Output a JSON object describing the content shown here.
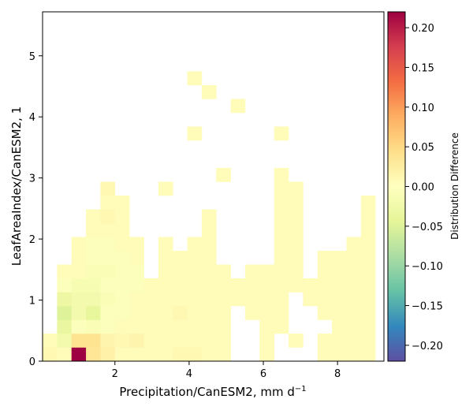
{
  "chart_data": {
    "type": "heatmap",
    "xlabel": "Precipitation/CanESM2,  mm d",
    "xlabel_sup": "−1",
    "ylabel": "LeafAreaIndex/CanESM2,  1",
    "colorbar_label": "Distribution Difference",
    "xlim": [
      0.05,
      9.25
    ],
    "ylim": [
      0,
      5.72
    ],
    "x_ticks": [
      2,
      4,
      6,
      8
    ],
    "y_ticks": [
      0,
      1,
      2,
      3,
      4,
      5
    ],
    "x_tick_labels": [
      "2",
      "4",
      "6",
      "8"
    ],
    "y_tick_labels": [
      "0",
      "1",
      "2",
      "3",
      "4",
      "5"
    ],
    "colorbar_ticks": [
      -0.2,
      -0.15,
      -0.1,
      -0.05,
      0.0,
      0.05,
      0.1,
      0.15,
      0.2
    ],
    "colorbar_tick_labels": [
      "−0.20",
      "−0.15",
      "−0.10",
      "−0.05",
      "0.00",
      "0.05",
      "0.10",
      "0.15",
      "0.20"
    ],
    "colorbar_range": [
      -0.22,
      0.22
    ],
    "colormap": "Spectral_r",
    "bin_x0": 0.05,
    "bin_dx": 0.39,
    "bin_y0": 0.0,
    "bin_dy": 0.226,
    "cells": [
      [
        0,
        0,
        0.01
      ],
      [
        0,
        1,
        0.005
      ],
      [
        1,
        0,
        0.005
      ],
      [
        1,
        1,
        -0.02
      ],
      [
        1,
        2,
        -0.035
      ],
      [
        1,
        3,
        -0.05
      ],
      [
        1,
        4,
        -0.03
      ],
      [
        1,
        5,
        -0.005
      ],
      [
        1,
        6,
        0.005
      ],
      [
        2,
        0,
        0.22
      ],
      [
        2,
        1,
        0.04
      ],
      [
        2,
        2,
        -0.005
      ],
      [
        2,
        3,
        -0.02
      ],
      [
        2,
        4,
        -0.02
      ],
      [
        2,
        5,
        -0.015
      ],
      [
        2,
        6,
        0.005
      ],
      [
        2,
        7,
        0.005
      ],
      [
        2,
        8,
        0.005
      ],
      [
        3,
        0,
        0.035
      ],
      [
        3,
        1,
        0.04
      ],
      [
        3,
        2,
        -0.01
      ],
      [
        3,
        3,
        -0.04
      ],
      [
        3,
        4,
        -0.02
      ],
      [
        3,
        5,
        -0.015
      ],
      [
        3,
        6,
        -0.01
      ],
      [
        3,
        7,
        -0.005
      ],
      [
        3,
        8,
        -0.005
      ],
      [
        3,
        9,
        0.005
      ],
      [
        3,
        10,
        0.005
      ],
      [
        4,
        0,
        0.02
      ],
      [
        4,
        1,
        0.015
      ],
      [
        4,
        2,
        -0.005
      ],
      [
        4,
        3,
        -0.005
      ],
      [
        4,
        4,
        -0.01
      ],
      [
        4,
        5,
        -0.005
      ],
      [
        4,
        6,
        -0.01
      ],
      [
        4,
        7,
        -0.005
      ],
      [
        4,
        8,
        -0.005
      ],
      [
        4,
        9,
        0.005
      ],
      [
        4,
        10,
        0.01
      ],
      [
        4,
        11,
        0.005
      ],
      [
        4,
        12,
        0.01
      ],
      [
        5,
        0,
        0.005
      ],
      [
        5,
        1,
        0.01
      ],
      [
        5,
        2,
        0.005
      ],
      [
        5,
        3,
        -0.005
      ],
      [
        5,
        4,
        -0.005
      ],
      [
        5,
        5,
        -0.005
      ],
      [
        5,
        6,
        -0.005
      ],
      [
        5,
        7,
        -0.005
      ],
      [
        5,
        8,
        0.005
      ],
      [
        5,
        9,
        0.005
      ],
      [
        5,
        10,
        0.005
      ],
      [
        5,
        11,
        0.005
      ],
      [
        6,
        0,
        0.005
      ],
      [
        6,
        1,
        0.015
      ],
      [
        6,
        2,
        0.005
      ],
      [
        6,
        3,
        0.005
      ],
      [
        6,
        4,
        0.005
      ],
      [
        6,
        5,
        -0.005
      ],
      [
        6,
        6,
        -0.005
      ],
      [
        6,
        7,
        0.005
      ],
      [
        6,
        8,
        0.005
      ],
      [
        7,
        0,
        0.005
      ],
      [
        7,
        1,
        0.005
      ],
      [
        7,
        2,
        0.005
      ],
      [
        7,
        3,
        0.005
      ],
      [
        7,
        4,
        0.005
      ],
      [
        7,
        5,
        0.005
      ],
      [
        8,
        0,
        0.005
      ],
      [
        8,
        1,
        0.005
      ],
      [
        8,
        2,
        0.005
      ],
      [
        8,
        3,
        0.005
      ],
      [
        8,
        4,
        0.005
      ],
      [
        8,
        5,
        0.005
      ],
      [
        8,
        6,
        0.005
      ],
      [
        8,
        7,
        0.005
      ],
      [
        8,
        8,
        0.005
      ],
      [
        8,
        12,
        0.005
      ],
      [
        9,
        0,
        0.01
      ],
      [
        9,
        1,
        0.005
      ],
      [
        9,
        2,
        0.005
      ],
      [
        9,
        3,
        0.01
      ],
      [
        9,
        4,
        0.005
      ],
      [
        9,
        5,
        0.005
      ],
      [
        9,
        6,
        0.005
      ],
      [
        9,
        7,
        0.005
      ],
      [
        10,
        0,
        0.01
      ],
      [
        10,
        1,
        0.005
      ],
      [
        10,
        2,
        0.005
      ],
      [
        10,
        3,
        0.005
      ],
      [
        10,
        4,
        0.005
      ],
      [
        10,
        5,
        0.005
      ],
      [
        10,
        6,
        0.005
      ],
      [
        10,
        7,
        0.005
      ],
      [
        10,
        8,
        0.005
      ],
      [
        10,
        16,
        0.005
      ],
      [
        10,
        20,
        0.005
      ],
      [
        11,
        0,
        0.005
      ],
      [
        11,
        1,
        0.005
      ],
      [
        11,
        2,
        0.005
      ],
      [
        11,
        3,
        0.005
      ],
      [
        11,
        4,
        0.005
      ],
      [
        11,
        5,
        0.005
      ],
      [
        11,
        6,
        0.005
      ],
      [
        11,
        7,
        0.005
      ],
      [
        11,
        8,
        0.005
      ],
      [
        11,
        9,
        0.005
      ],
      [
        11,
        10,
        0.005
      ],
      [
        11,
        19,
        0.005
      ],
      [
        12,
        0,
        0.005
      ],
      [
        12,
        1,
        0.005
      ],
      [
        12,
        2,
        0.005
      ],
      [
        12,
        3,
        0.005
      ],
      [
        12,
        4,
        0.005
      ],
      [
        12,
        5,
        0.005
      ],
      [
        12,
        6,
        0.005
      ],
      [
        12,
        13,
        0.005
      ],
      [
        13,
        4,
        0.005
      ],
      [
        13,
        5,
        0.005
      ],
      [
        13,
        18,
        0.005
      ],
      [
        14,
        3,
        0.005
      ],
      [
        14,
        4,
        0.005
      ],
      [
        14,
        5,
        0.005
      ],
      [
        14,
        6,
        0.005
      ],
      [
        15,
        0,
        0.005
      ],
      [
        15,
        1,
        0.005
      ],
      [
        15,
        2,
        0.005
      ],
      [
        15,
        3,
        0.005
      ],
      [
        15,
        4,
        0.005
      ],
      [
        15,
        5,
        0.005
      ],
      [
        15,
        6,
        0.005
      ],
      [
        16,
        2,
        0.005
      ],
      [
        16,
        3,
        0.005
      ],
      [
        16,
        4,
        0.005
      ],
      [
        16,
        5,
        0.005
      ],
      [
        16,
        6,
        0.005
      ],
      [
        16,
        7,
        0.005
      ],
      [
        16,
        8,
        0.005
      ],
      [
        16,
        9,
        0.005
      ],
      [
        16,
        10,
        0.005
      ],
      [
        16,
        11,
        0.005
      ],
      [
        16,
        12,
        0.005
      ],
      [
        16,
        13,
        0.005
      ],
      [
        16,
        16,
        0.005
      ],
      [
        17,
        1,
        0.005
      ],
      [
        17,
        5,
        0.005
      ],
      [
        17,
        6,
        0.005
      ],
      [
        17,
        7,
        0.005
      ],
      [
        17,
        8,
        0.005
      ],
      [
        17,
        9,
        0.005
      ],
      [
        17,
        10,
        0.005
      ],
      [
        17,
        11,
        0.005
      ],
      [
        17,
        12,
        0.005
      ],
      [
        18,
        4,
        0.005
      ],
      [
        18,
        5,
        0.005
      ],
      [
        19,
        0,
        0.005
      ],
      [
        19,
        1,
        0.005
      ],
      [
        19,
        3,
        0.005
      ],
      [
        19,
        4,
        0.005
      ],
      [
        19,
        5,
        0.005
      ],
      [
        19,
        6,
        0.005
      ],
      [
        19,
        7,
        0.005
      ],
      [
        20,
        0,
        0.005
      ],
      [
        20,
        1,
        0.005
      ],
      [
        20,
        2,
        0.005
      ],
      [
        20,
        3,
        0.005
      ],
      [
        20,
        4,
        0.005
      ],
      [
        20,
        5,
        0.005
      ],
      [
        20,
        6,
        0.005
      ],
      [
        20,
        7,
        0.005
      ],
      [
        21,
        0,
        0.005
      ],
      [
        21,
        1,
        0.005
      ],
      [
        21,
        2,
        0.005
      ],
      [
        21,
        3,
        0.005
      ],
      [
        21,
        4,
        0.005
      ],
      [
        21,
        5,
        0.005
      ],
      [
        21,
        6,
        0.005
      ],
      [
        21,
        7,
        0.005
      ],
      [
        21,
        8,
        0.005
      ],
      [
        22,
        0,
        0.005
      ],
      [
        22,
        1,
        0.005
      ],
      [
        22,
        2,
        0.005
      ],
      [
        22,
        3,
        0.005
      ],
      [
        22,
        4,
        0.005
      ],
      [
        22,
        5,
        0.005
      ],
      [
        22,
        6,
        0.005
      ],
      [
        22,
        7,
        0.005
      ],
      [
        22,
        8,
        0.005
      ],
      [
        22,
        9,
        0.005
      ],
      [
        22,
        10,
        0.005
      ],
      [
        22,
        11,
        0.005
      ]
    ]
  }
}
